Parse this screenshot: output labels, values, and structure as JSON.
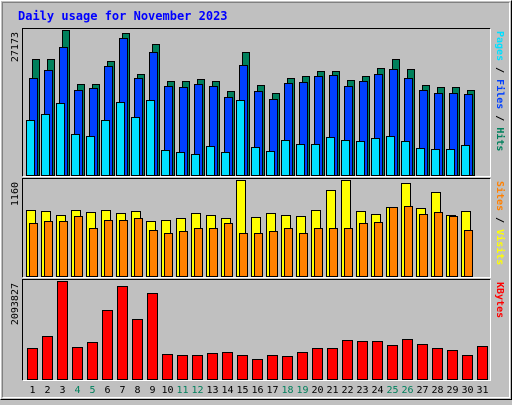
{
  "title": "Daily usage for November 2023",
  "colors": {
    "background": "#c0c0c0",
    "title": "#0000ff",
    "hits": "#00805c",
    "files": "#0040ff",
    "pages": "#00e0ff",
    "visits": "#ffff00",
    "sites": "#ff8000",
    "kbytes": "#ff0000",
    "weekend_label": "#00805c",
    "weekday_label": "#000000"
  },
  "chart_data": [
    {
      "type": "bar",
      "panel": "hits-files-pages",
      "scale_label": "27173",
      "ymax": 27173,
      "right_label_parts": [
        {
          "text": "Pages",
          "color": "#00e0ff"
        },
        {
          "text": " / ",
          "color": "#000000"
        },
        {
          "text": "Files",
          "color": "#0040ff"
        },
        {
          "text": " / ",
          "color": "#000000"
        },
        {
          "text": "Hits",
          "color": "#00805c"
        }
      ],
      "categories": [
        "1",
        "2",
        "3",
        "4",
        "5",
        "6",
        "7",
        "8",
        "9",
        "10",
        "11",
        "12",
        "13",
        "14",
        "15",
        "16",
        "17",
        "18",
        "19",
        "20",
        "21",
        "22",
        "23",
        "24",
        "25",
        "26",
        "27",
        "28",
        "29",
        "30",
        "31"
      ],
      "series": [
        {
          "name": "Hits",
          "values": [
            21800,
            21800,
            27173,
            17000,
            17000,
            21400,
            26700,
            19000,
            24500,
            17600,
            17600,
            18000,
            17600,
            15800,
            23100,
            16900,
            15300,
            18200,
            18500,
            19500,
            19500,
            17800,
            18500,
            20100,
            21700,
            19800,
            16900,
            16400,
            16400,
            16000,
            null
          ]
        },
        {
          "name": "Files",
          "values": [
            18200,
            19600,
            24000,
            16000,
            16300,
            20500,
            25700,
            18200,
            23000,
            16600,
            16400,
            17000,
            16700,
            14700,
            20600,
            15800,
            14200,
            17300,
            17500,
            18600,
            18800,
            16700,
            17700,
            18900,
            19900,
            18200,
            15900,
            15400,
            15400,
            15200,
            null
          ]
        },
        {
          "name": "Pages",
          "values": [
            10400,
            11400,
            13500,
            7600,
            7300,
            10300,
            13600,
            10800,
            14000,
            4600,
            4400,
            3900,
            5500,
            4400,
            14000,
            5200,
            4500,
            6600,
            5800,
            5800,
            7100,
            6600,
            6300,
            6900,
            7300,
            6400,
            5000,
            4900,
            4900,
            5700,
            null
          ]
        }
      ]
    },
    {
      "type": "bar",
      "panel": "visits-sites",
      "scale_label": "1160",
      "ymax": 1160,
      "right_label_parts": [
        {
          "text": "Sites",
          "color": "#ff8000"
        },
        {
          "text": " / ",
          "color": "#000000"
        },
        {
          "text": "Visits",
          "color": "#ffff00"
        }
      ],
      "categories": [
        "1",
        "2",
        "3",
        "4",
        "5",
        "6",
        "7",
        "8",
        "9",
        "10",
        "11",
        "12",
        "13",
        "14",
        "15",
        "16",
        "17",
        "18",
        "19",
        "20",
        "21",
        "22",
        "23",
        "24",
        "25",
        "26",
        "27",
        "28",
        "29",
        "30",
        "31"
      ],
      "series": [
        {
          "name": "Visits",
          "values": [
            800,
            780,
            740,
            800,
            770,
            800,
            760,
            790,
            660,
            680,
            700,
            760,
            740,
            700,
            1160,
            710,
            760,
            740,
            730,
            800,
            1040,
            1160,
            780,
            750,
            830,
            1120,
            820,
            1020,
            740,
            790,
            null
          ]
        },
        {
          "name": "Sites",
          "values": [
            640,
            670,
            670,
            720,
            580,
            680,
            680,
            700,
            560,
            520,
            540,
            580,
            580,
            640,
            520,
            520,
            540,
            580,
            520,
            580,
            580,
            580,
            640,
            650,
            830,
            840,
            750,
            770,
            720,
            550,
            null
          ]
        }
      ]
    },
    {
      "type": "bar",
      "panel": "kbytes",
      "scale_label": "2093827",
      "ymax": 2093827,
      "right_label_parts": [
        {
          "text": "KBytes",
          "color": "#ff0000"
        }
      ],
      "categories": [
        "1",
        "2",
        "3",
        "4",
        "5",
        "6",
        "7",
        "8",
        "9",
        "10",
        "11",
        "12",
        "13",
        "14",
        "15",
        "16",
        "17",
        "18",
        "19",
        "20",
        "21",
        "22",
        "23",
        "24",
        "25",
        "26",
        "27",
        "28",
        "29",
        "30",
        "31"
      ],
      "series": [
        {
          "name": "KBytes",
          "values": [
            660000,
            920000,
            2093827,
            690000,
            790000,
            1480000,
            1990000,
            1280000,
            1840000,
            530000,
            520000,
            520000,
            550000,
            580000,
            510000,
            430000,
            520000,
            490000,
            580000,
            670000,
            670000,
            840000,
            810000,
            810000,
            730000,
            850000,
            750000,
            660000,
            630000,
            520000,
            700000
          ]
        }
      ]
    }
  ]
}
